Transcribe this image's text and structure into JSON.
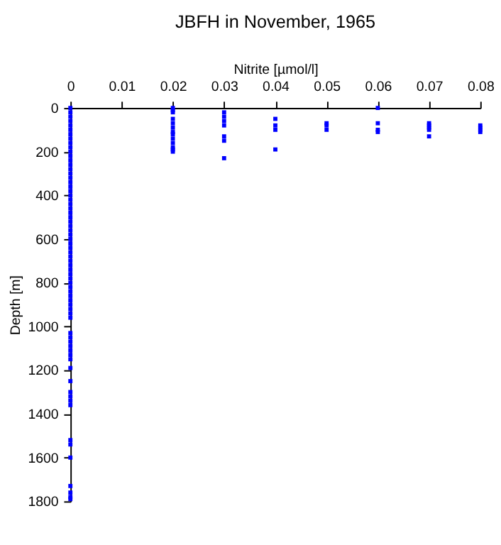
{
  "chart_data": {
    "type": "scatter",
    "title": "JBFH in November, 1965",
    "xlabel": "Nitrite [µmol/l]",
    "ylabel": "Depth [m]",
    "series": [
      {
        "color": "#0000ff",
        "x": [
          0,
          0,
          0,
          0,
          0,
          0,
          0,
          0,
          0,
          0,
          0,
          0,
          0,
          0,
          0,
          0,
          0,
          0,
          0,
          0,
          0,
          0,
          0,
          0,
          0,
          0,
          0,
          0,
          0,
          0,
          0,
          0,
          0,
          0,
          0,
          0,
          0,
          0,
          0,
          0,
          0,
          0,
          0,
          0,
          0,
          0,
          0,
          0,
          0,
          0,
          0,
          0,
          0,
          0,
          0,
          0,
          0,
          0,
          0,
          0,
          0,
          0,
          0,
          0,
          0,
          0,
          0,
          0,
          0,
          0.02,
          0.02,
          0.02,
          0.02,
          0.02,
          0.02,
          0.02,
          0.02,
          0.02,
          0.02,
          0.02,
          0.02,
          0.02,
          0.03,
          0.03,
          0.03,
          0.03,
          0.03,
          0.03,
          0.03,
          0.04,
          0.04,
          0.04,
          0.04,
          0.05,
          0.05,
          0.05,
          0.06,
          0.06,
          0.06,
          0.06,
          0.07,
          0.07,
          0.07,
          0.07,
          0.07,
          0.08,
          0.08,
          0.08,
          0.08
        ],
        "values": [
          0,
          20,
          40,
          60,
          80,
          100,
          120,
          140,
          160,
          180,
          200,
          220,
          240,
          260,
          280,
          300,
          320,
          340,
          360,
          380,
          400,
          420,
          440,
          460,
          480,
          500,
          520,
          540,
          560,
          580,
          600,
          620,
          640,
          660,
          680,
          700,
          720,
          740,
          760,
          780,
          800,
          820,
          840,
          860,
          880,
          900,
          920,
          940,
          960,
          1030,
          1050,
          1070,
          1090,
          1110,
          1130,
          1150,
          1190,
          1250,
          1300,
          1320,
          1340,
          1360,
          1520,
          1540,
          1600,
          1730,
          1760,
          1780,
          1790,
          0,
          10,
          20,
          50,
          70,
          90,
          110,
          120,
          140,
          160,
          180,
          190,
          200,
          20,
          40,
          60,
          80,
          130,
          150,
          230,
          50,
          80,
          100,
          190,
          70,
          80,
          100,
          0,
          70,
          100,
          110,
          70,
          80,
          90,
          100,
          130,
          80,
          90,
          100,
          110
        ]
      }
    ],
    "xlim": [
      0,
      0.08
    ],
    "xticks": [
      0,
      0.01,
      0.02,
      0.03,
      0.04,
      0.05,
      0.06,
      0.07,
      0.08
    ],
    "ylim": [
      1800,
      0
    ],
    "yticks": [
      0,
      200,
      400,
      600,
      800,
      1000,
      1200,
      1400,
      1600,
      1800
    ],
    "marker": "square",
    "grid": false,
    "legend": false
  }
}
